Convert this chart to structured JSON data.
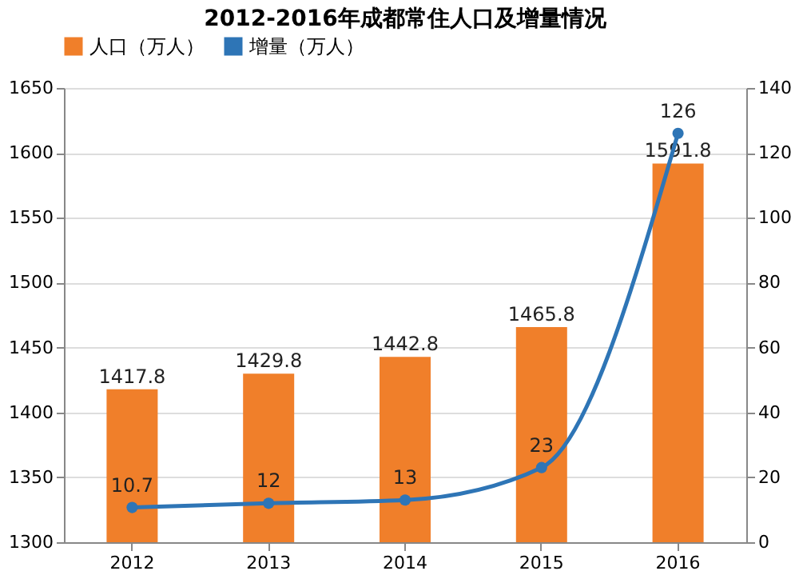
{
  "chart_data": {
    "type": "bar",
    "title": "2012-2016年成都常住人口及增量情况",
    "categories": [
      "2012",
      "2013",
      "2014",
      "2015",
      "2016"
    ],
    "series": [
      {
        "name": "人口（万人）",
        "color": "#f07f2a",
        "values": [
          1417.8,
          1429.8,
          1442.8,
          1465.8,
          1591.8
        ]
      },
      {
        "name": "增量（万人）",
        "color": "#2e75b6",
        "type": "line",
        "axis": "y2",
        "marker": "circle",
        "values": [
          10.7,
          12,
          13,
          23,
          126
        ]
      }
    ],
    "ylim": [
      1300,
      1650
    ],
    "yticks": [
      1300,
      1350,
      1400,
      1450,
      1500,
      1550,
      1600,
      1650
    ],
    "y2lim": [
      0,
      140
    ],
    "y2ticks": [
      0,
      20,
      40,
      60,
      80,
      100,
      120,
      140
    ],
    "grid": "y",
    "legend": "top",
    "data_labels": true
  }
}
